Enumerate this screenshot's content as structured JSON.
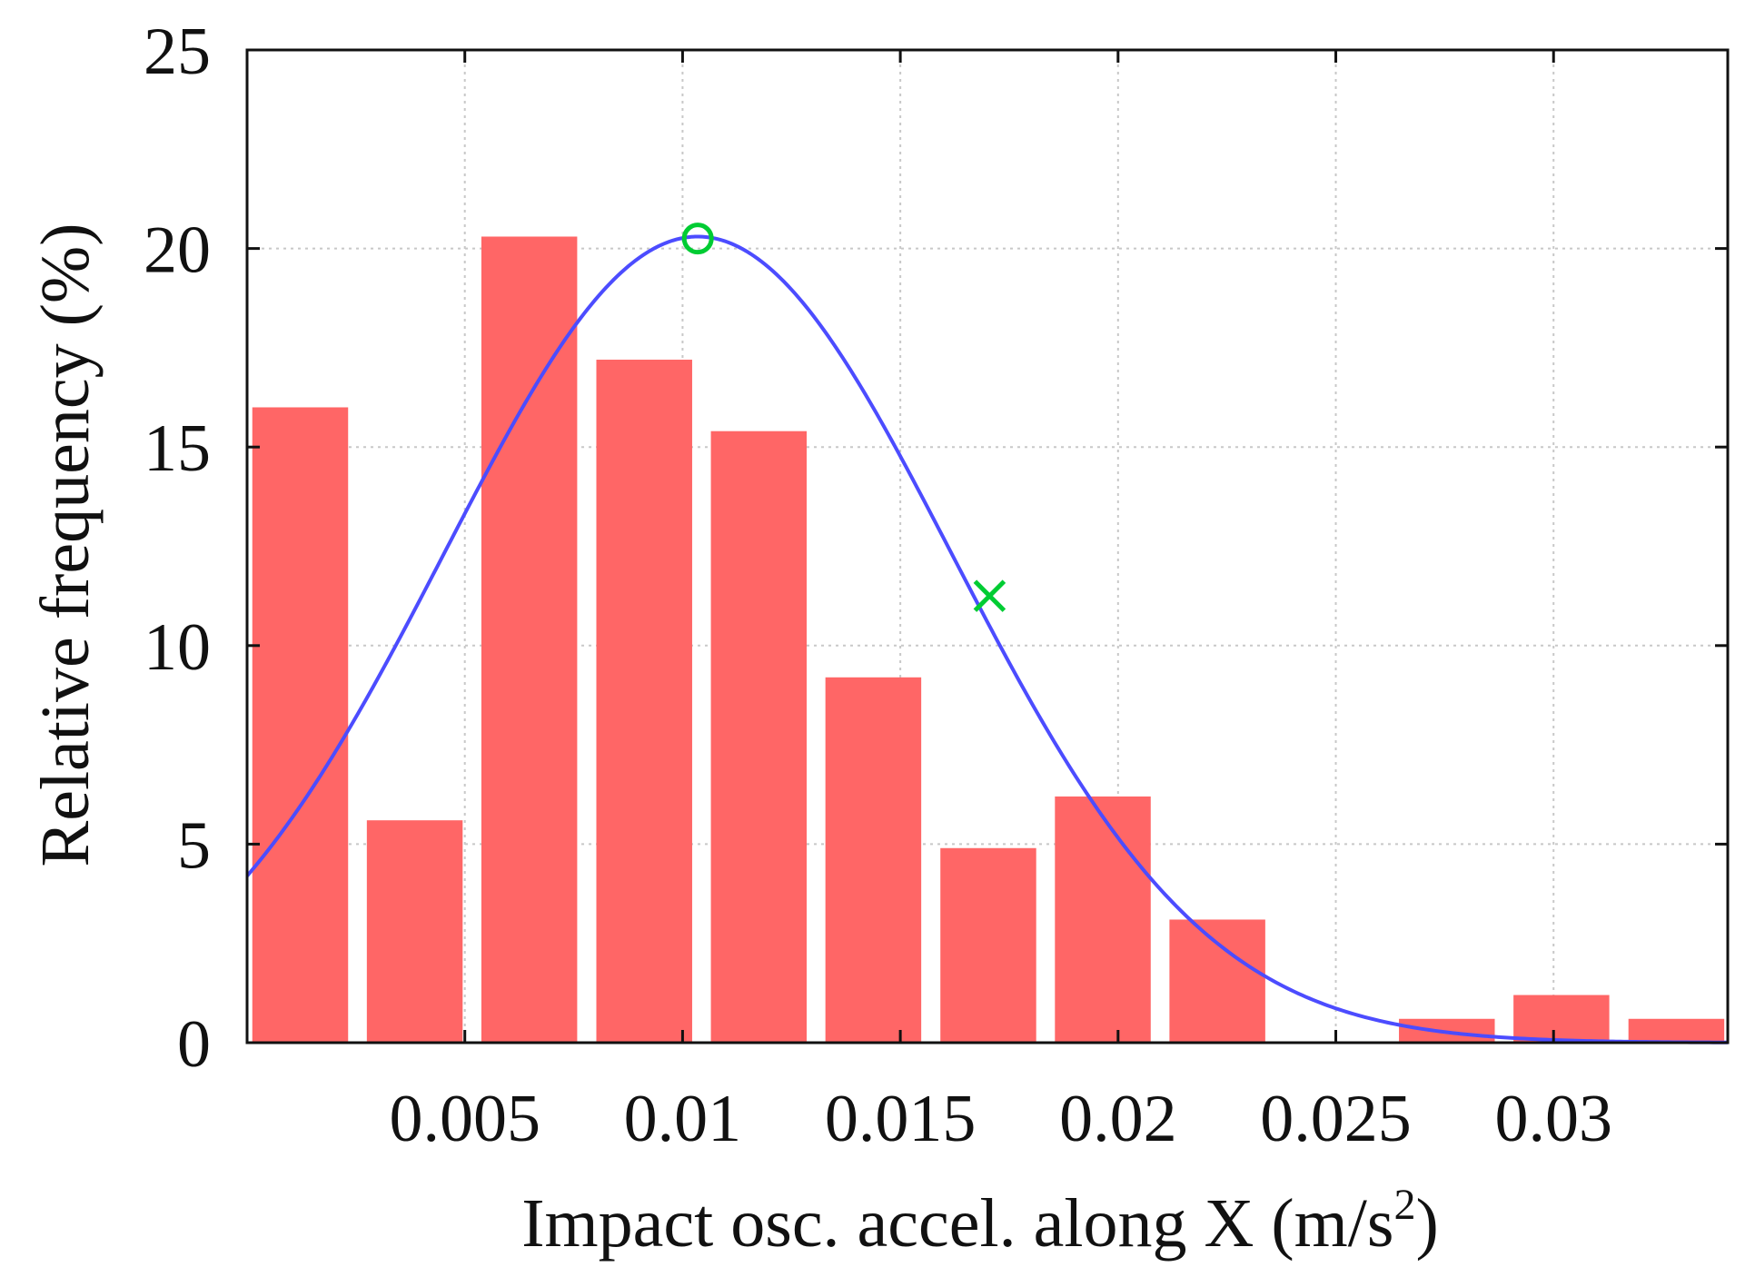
{
  "chart_data": {
    "type": "bar",
    "title": "",
    "xlabel": "Impact osc. accel. along X (m/s",
    "xlabel_superscript": "2",
    "xlabel_suffix": ")",
    "ylabel": "Relative frequency (%)",
    "xlim": [
      0.0,
      0.034
    ],
    "ylim": [
      0,
      25
    ],
    "grid": true,
    "x_ticks": [
      0.005,
      0.01,
      0.015,
      0.02,
      0.025,
      0.03
    ],
    "x_tick_labels": [
      "0.005",
      "0.01",
      "0.015",
      "0.02",
      "0.025",
      "0.03"
    ],
    "y_ticks": [
      0,
      5,
      10,
      15,
      20,
      25
    ],
    "y_tick_labels": [
      "0",
      "5",
      "10",
      "15",
      "20",
      "25"
    ],
    "bar_width": 0.0022,
    "series": [
      {
        "name": "histogram",
        "type": "bar",
        "color": "#ff6666",
        "x": [
          0.00122,
          0.00385,
          0.00648,
          0.00912,
          0.01175,
          0.01438,
          0.01702,
          0.01965,
          0.02228,
          0.02755,
          0.03018,
          0.03282
        ],
        "values": [
          16.0,
          5.6,
          20.3,
          17.2,
          15.4,
          9.2,
          4.9,
          6.2,
          3.1,
          0.6,
          1.2,
          0.6
        ]
      },
      {
        "name": "fitted curve",
        "type": "line",
        "color": "#4c4cff",
        "model": "gaussian",
        "peak": 20.3,
        "mean": 0.01035,
        "sigma": 0.00583
      }
    ],
    "markers": [
      {
        "name": "peak",
        "shape": "circle",
        "x": 0.01035,
        "y": 20.25,
        "color": "#00cc33"
      },
      {
        "name": "cross",
        "shape": "x",
        "x": 0.01705,
        "y": 11.25,
        "color": "#00cc33"
      }
    ]
  }
}
